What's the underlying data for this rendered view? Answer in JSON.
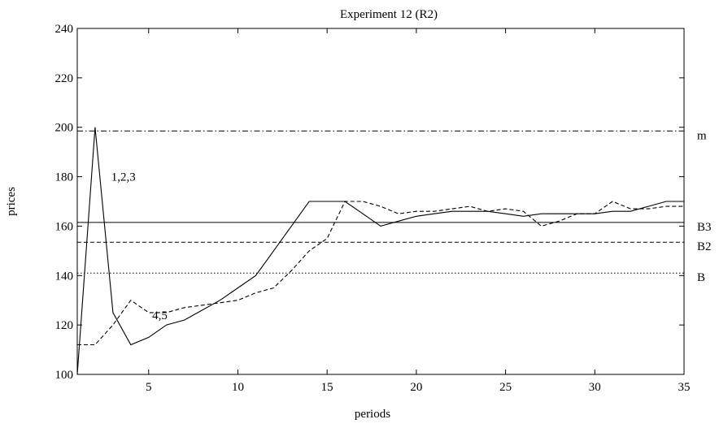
{
  "chart_data": {
    "type": "line",
    "title": "Experiment 12 (R2)",
    "xlabel": "periods",
    "ylabel": "prices",
    "xlim": [
      1,
      35
    ],
    "ylim": [
      100,
      240
    ],
    "xticks": [
      5,
      10,
      15,
      20,
      25,
      30,
      35
    ],
    "yticks": [
      100,
      120,
      140,
      160,
      180,
      200,
      220,
      240
    ],
    "grid": false,
    "series": [
      {
        "name": "1,2,3",
        "style": "solid",
        "x": [
          1,
          2,
          3,
          4,
          5,
          6,
          7,
          8,
          9,
          10,
          11,
          12,
          13,
          14,
          15,
          16,
          17,
          18,
          19,
          20,
          21,
          22,
          23,
          24,
          25,
          26,
          27,
          28,
          29,
          30,
          31,
          32,
          33,
          34,
          35
        ],
        "y": [
          100,
          200,
          125,
          112,
          115,
          120,
          122,
          126,
          130,
          135,
          140,
          150,
          160,
          170,
          170,
          170,
          165,
          160,
          162,
          164,
          165,
          166,
          166,
          166,
          165,
          164,
          165,
          165,
          165,
          165,
          166,
          166,
          168,
          170,
          170
        ]
      },
      {
        "name": "4,5",
        "style": "dashed",
        "x": [
          1,
          2,
          3,
          4,
          5,
          6,
          7,
          8,
          9,
          10,
          11,
          12,
          13,
          14,
          15,
          16,
          17,
          18,
          19,
          20,
          21,
          22,
          23,
          24,
          25,
          26,
          27,
          28,
          29,
          30,
          31,
          32,
          33,
          34,
          35
        ],
        "y": [
          112,
          112,
          120,
          130,
          125,
          125,
          127,
          128,
          129,
          130,
          133,
          135,
          142,
          150,
          155,
          170,
          170,
          168,
          165,
          166,
          166,
          167,
          168,
          166,
          167,
          166,
          160,
          162,
          165,
          165,
          170,
          167,
          167,
          168,
          168
        ]
      }
    ],
    "reference_lines": [
      {
        "label": "m",
        "y": 198.5,
        "style": "dashdot"
      },
      {
        "label": "B3",
        "y": 161.5,
        "style": "solid"
      },
      {
        "label": "B2",
        "y": 153.5,
        "style": "dashed"
      },
      {
        "label": "B",
        "y": 141,
        "style": "dotted"
      }
    ]
  }
}
